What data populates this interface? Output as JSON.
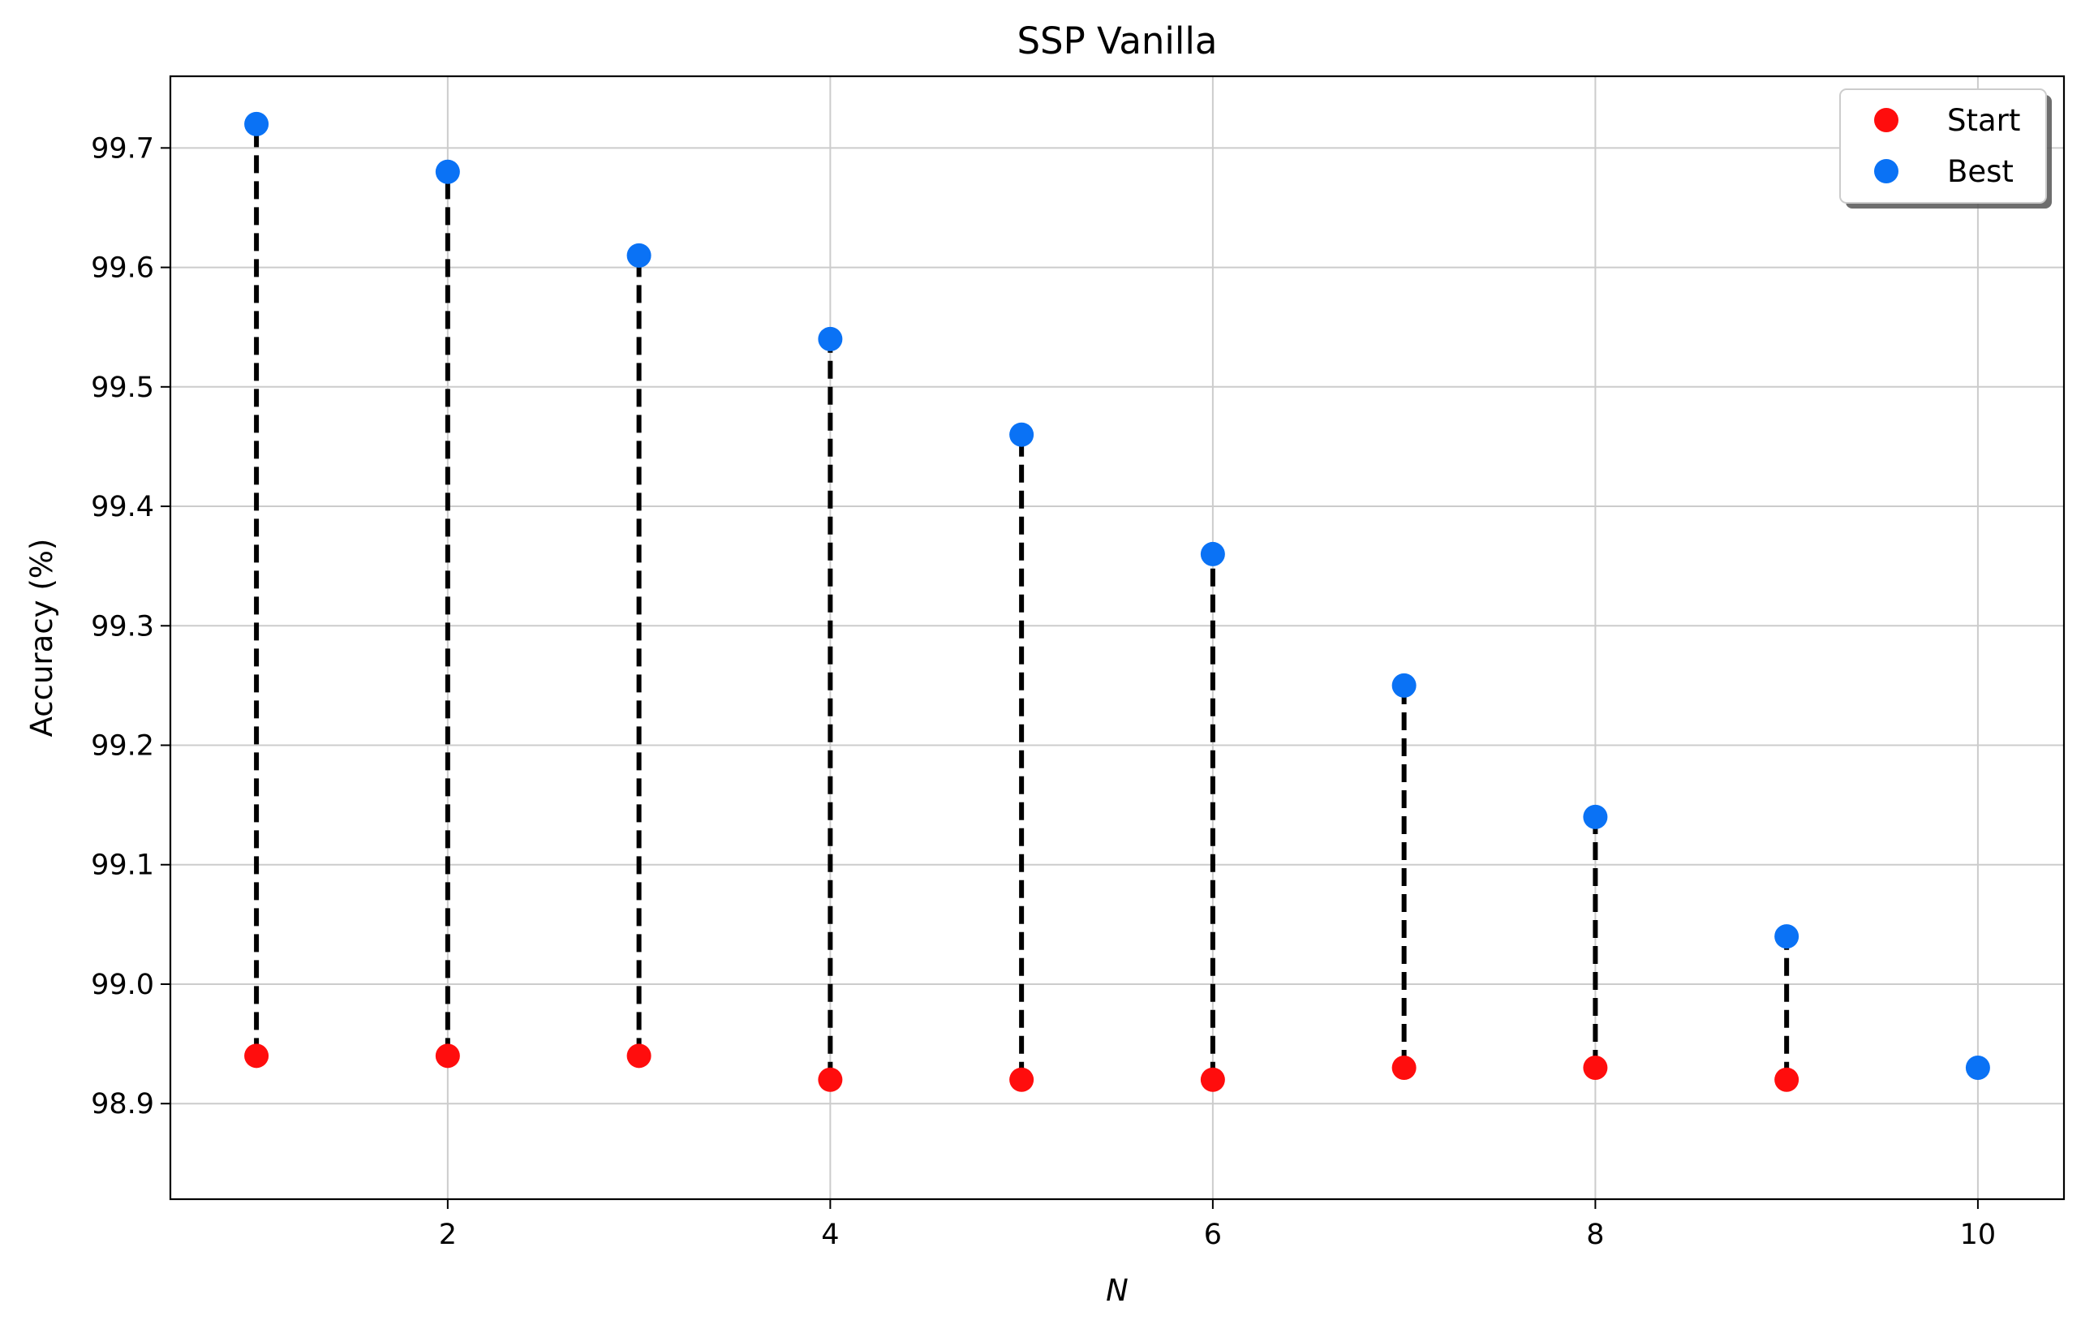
{
  "chart_data": {
    "type": "scatter",
    "title": "SSP Vanilla",
    "xlabel": "N",
    "ylabel": "Accuracy (%)",
    "xlim": [
      0.55,
      10.45
    ],
    "ylim": [
      98.82,
      99.76
    ],
    "xticks": [
      2,
      4,
      6,
      8,
      10
    ],
    "xtick_labels": [
      "2",
      "4",
      "6",
      "8",
      "10"
    ],
    "yticks": [
      98.9,
      99.0,
      99.1,
      99.2,
      99.3,
      99.4,
      99.5,
      99.6,
      99.7
    ],
    "ytick_labels": [
      "98.9",
      "99.0",
      "99.1",
      "99.2",
      "99.3",
      "99.4",
      "99.5",
      "99.6",
      "99.7"
    ],
    "grid": true,
    "legend_position": "top-right",
    "x": [
      1,
      2,
      3,
      4,
      5,
      6,
      7,
      8,
      9,
      10
    ],
    "series": [
      {
        "name": "Start",
        "color": "#ff0d0d",
        "values": [
          98.94,
          98.94,
          98.94,
          98.92,
          98.92,
          98.92,
          98.93,
          98.93,
          98.92,
          null
        ]
      },
      {
        "name": "Best",
        "color": "#0a72f5",
        "values": [
          99.72,
          99.68,
          99.61,
          99.54,
          99.46,
          99.36,
          99.25,
          99.14,
          99.04,
          98.93
        ]
      }
    ],
    "connectors": {
      "style": "dashed",
      "color": "#000000"
    }
  }
}
